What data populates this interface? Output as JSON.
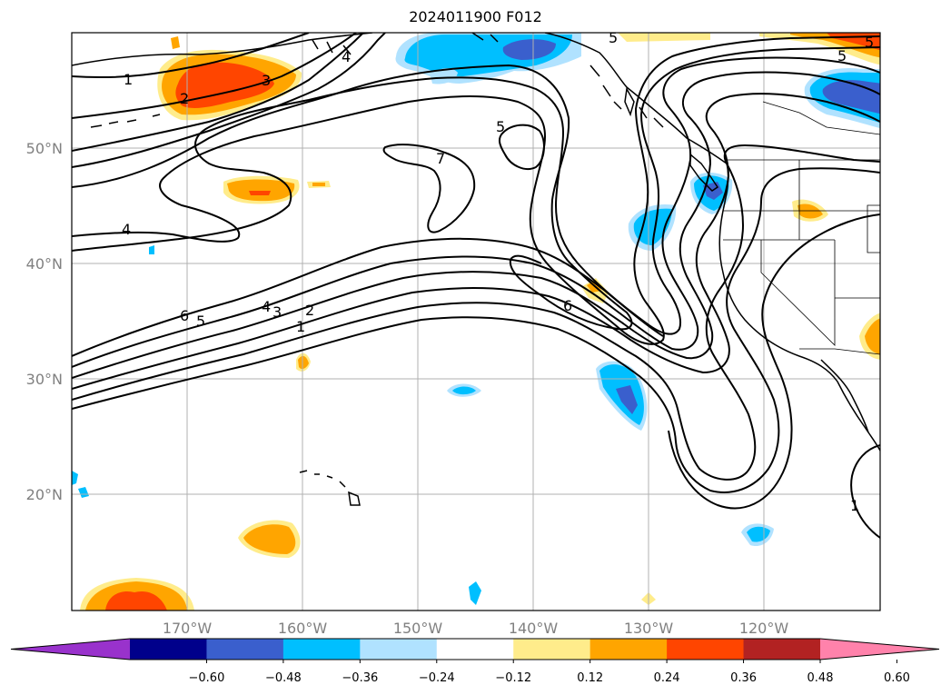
{
  "title": "2024011900 F012",
  "map": {
    "lat_labels": [
      "50°N",
      "40°N",
      "30°N",
      "20°N"
    ],
    "lon_labels": [
      "170°W",
      "160°W",
      "150°W",
      "140°W",
      "130°W",
      "120°W"
    ],
    "gridline_color": "#b0b0b0",
    "coastline_color": "#000000"
  },
  "contour_labels": [
    "1",
    "2",
    "3",
    "4",
    "5",
    "7",
    "5",
    "4",
    "6",
    "5",
    "4",
    "3",
    "2",
    "1",
    "6",
    "5",
    "5",
    "1"
  ],
  "colorbar": {
    "extend": "both",
    "tick_labels": [
      "−0.60",
      "−0.48",
      "−0.36",
      "−0.24",
      "−0.12",
      "0.12",
      "0.24",
      "0.36",
      "0.48",
      "0.60"
    ],
    "colors": [
      "#9932cc",
      "#00008b",
      "#3a5fcd",
      "#00bfff",
      "#b0e2ff",
      "#ffffff",
      "#ffec8b",
      "#ffa500",
      "#ff4500",
      "#b22222",
      "#ff82ab"
    ]
  }
}
